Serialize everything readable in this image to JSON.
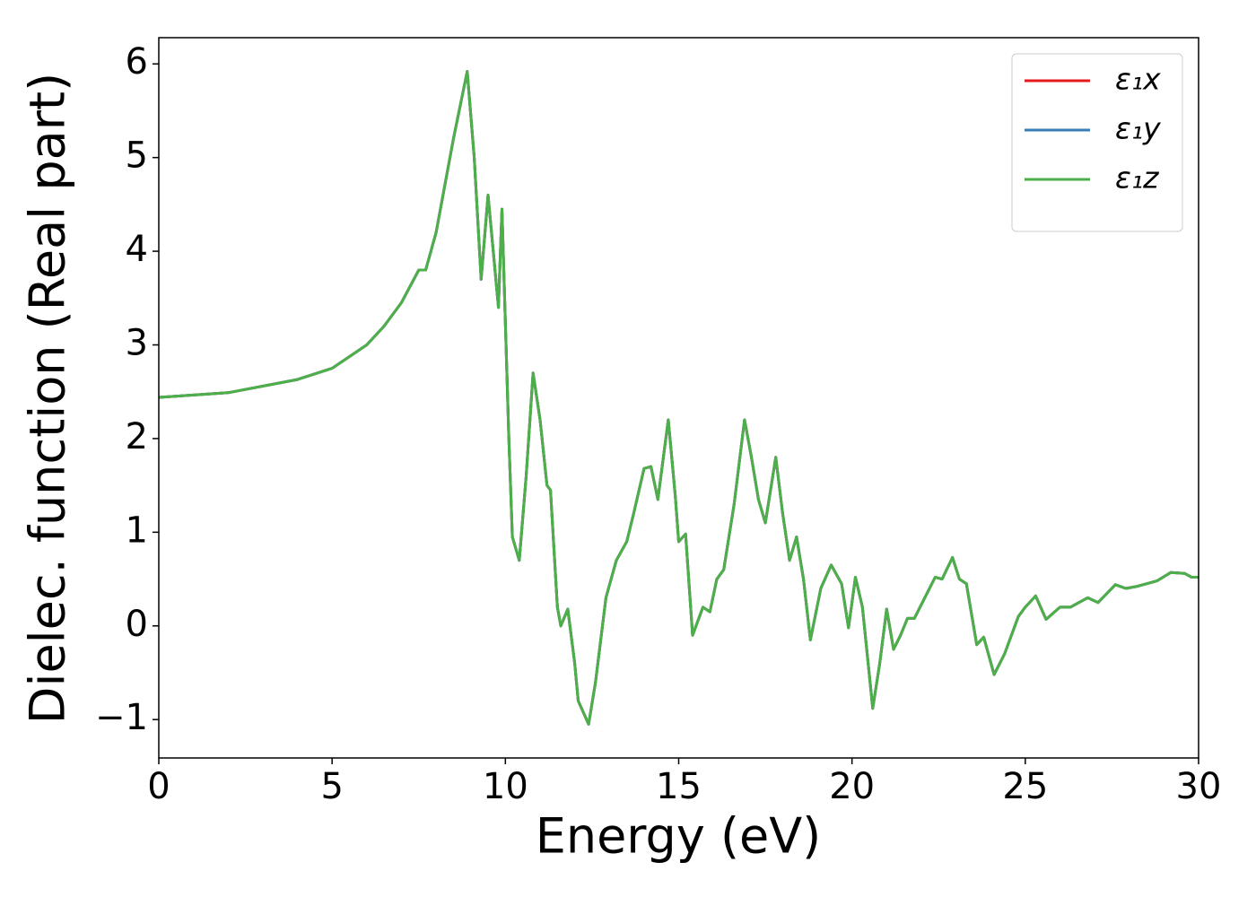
{
  "chart_data": {
    "type": "line",
    "xlabel": "Energy (eV)",
    "ylabel": "Dielec. function (Real part)",
    "x": [
      0,
      2,
      4,
      5,
      6,
      6.5,
      7,
      7.5,
      7.7,
      8,
      8.5,
      8.9,
      9.1,
      9.3,
      9.5,
      9.8,
      9.9,
      10.1,
      10.2,
      10.4,
      10.6,
      10.8,
      11.0,
      11.2,
      11.3,
      11.5,
      11.6,
      11.8,
      12.0,
      12.1,
      12.4,
      12.6,
      12.9,
      13.2,
      13.5,
      13.7,
      14.0,
      14.2,
      14.4,
      14.7,
      14.9,
      15.0,
      15.2,
      15.4,
      15.6,
      15.7,
      15.9,
      16.1,
      16.3,
      16.6,
      16.9,
      17.1,
      17.3,
      17.5,
      17.8,
      18.0,
      18.2,
      18.4,
      18.6,
      18.8,
      19.1,
      19.4,
      19.7,
      19.9,
      20.1,
      20.3,
      20.6,
      20.8,
      21.0,
      21.2,
      21.4,
      21.6,
      21.8,
      22.1,
      22.4,
      22.6,
      22.9,
      23.1,
      23.3,
      23.6,
      23.8,
      24.1,
      24.4,
      24.8,
      25.0,
      25.3,
      25.6,
      26.0,
      26.3,
      26.5,
      26.8,
      27.1,
      27.6,
      27.9,
      28.2,
      28.5,
      28.8,
      29.2,
      29.6,
      29.8,
      30
    ],
    "series": [
      {
        "name": "ε₁x",
        "color": "#e41a1c",
        "values": [
          2.44,
          2.49,
          2.63,
          2.75,
          3.0,
          3.2,
          3.45,
          3.8,
          3.8,
          4.2,
          5.2,
          5.92,
          5.0,
          3.7,
          4.6,
          3.4,
          4.45,
          2.0,
          0.95,
          0.7,
          1.6,
          2.7,
          2.2,
          1.5,
          1.45,
          0.2,
          0.0,
          0.18,
          -0.4,
          -0.8,
          -1.05,
          -0.6,
          0.3,
          0.7,
          0.9,
          1.2,
          1.68,
          1.7,
          1.35,
          2.2,
          1.4,
          0.9,
          0.98,
          -0.1,
          0.1,
          0.2,
          0.15,
          0.5,
          0.6,
          1.3,
          2.2,
          1.8,
          1.35,
          1.1,
          1.8,
          1.2,
          0.7,
          0.95,
          0.5,
          -0.15,
          0.4,
          0.65,
          0.45,
          -0.02,
          0.52,
          0.2,
          -0.88,
          -0.4,
          0.18,
          -0.25,
          -0.1,
          0.08,
          0.08,
          0.3,
          0.52,
          0.5,
          0.73,
          0.5,
          0.45,
          -0.2,
          -0.12,
          -0.52,
          -0.3,
          0.1,
          0.2,
          0.32,
          0.07,
          0.2,
          0.2,
          0.24,
          0.3,
          0.25,
          0.44,
          0.4,
          0.42,
          0.45,
          0.48,
          0.57,
          0.56,
          0.52,
          0.52
        ]
      },
      {
        "name": "ε₁y",
        "color": "#377eb8",
        "values": [
          2.44,
          2.49,
          2.63,
          2.75,
          3.0,
          3.2,
          3.45,
          3.8,
          3.8,
          4.2,
          5.2,
          5.92,
          5.0,
          3.7,
          4.6,
          3.4,
          4.45,
          2.0,
          0.95,
          0.7,
          1.6,
          2.7,
          2.2,
          1.5,
          1.45,
          0.2,
          0.0,
          0.18,
          -0.4,
          -0.8,
          -1.05,
          -0.6,
          0.3,
          0.7,
          0.9,
          1.2,
          1.68,
          1.7,
          1.35,
          2.2,
          1.4,
          0.9,
          0.98,
          -0.1,
          0.1,
          0.2,
          0.15,
          0.5,
          0.6,
          1.3,
          2.2,
          1.8,
          1.35,
          1.1,
          1.8,
          1.2,
          0.7,
          0.95,
          0.5,
          -0.15,
          0.4,
          0.65,
          0.45,
          -0.02,
          0.52,
          0.2,
          -0.88,
          -0.4,
          0.18,
          -0.25,
          -0.1,
          0.08,
          0.08,
          0.3,
          0.52,
          0.5,
          0.73,
          0.5,
          0.45,
          -0.2,
          -0.12,
          -0.52,
          -0.3,
          0.1,
          0.2,
          0.32,
          0.07,
          0.2,
          0.2,
          0.24,
          0.3,
          0.25,
          0.44,
          0.4,
          0.42,
          0.45,
          0.48,
          0.57,
          0.56,
          0.52,
          0.52
        ]
      },
      {
        "name": "ε₁z",
        "color": "#4daf4a",
        "values": [
          2.44,
          2.49,
          2.63,
          2.75,
          3.0,
          3.2,
          3.45,
          3.8,
          3.8,
          4.2,
          5.2,
          5.92,
          5.0,
          3.7,
          4.6,
          3.4,
          4.45,
          2.0,
          0.95,
          0.7,
          1.6,
          2.7,
          2.2,
          1.5,
          1.45,
          0.2,
          0.0,
          0.18,
          -0.4,
          -0.8,
          -1.05,
          -0.6,
          0.3,
          0.7,
          0.9,
          1.2,
          1.68,
          1.7,
          1.35,
          2.2,
          1.4,
          0.9,
          0.98,
          -0.1,
          0.1,
          0.2,
          0.15,
          0.5,
          0.6,
          1.3,
          2.2,
          1.8,
          1.35,
          1.1,
          1.8,
          1.2,
          0.7,
          0.95,
          0.5,
          -0.15,
          0.4,
          0.65,
          0.45,
          -0.02,
          0.52,
          0.2,
          -0.88,
          -0.4,
          0.18,
          -0.25,
          -0.1,
          0.08,
          0.08,
          0.3,
          0.52,
          0.5,
          0.73,
          0.5,
          0.45,
          -0.2,
          -0.12,
          -0.52,
          -0.3,
          0.1,
          0.2,
          0.32,
          0.07,
          0.2,
          0.2,
          0.24,
          0.3,
          0.25,
          0.44,
          0.4,
          0.42,
          0.45,
          0.48,
          0.57,
          0.56,
          0.52,
          0.52
        ]
      }
    ],
    "xlim": [
      0,
      30
    ],
    "xticks": [
      0,
      5,
      10,
      15,
      20,
      25,
      30
    ],
    "ylim": [
      -1.41,
      6.28
    ],
    "yticks": [
      -1,
      0,
      1,
      2,
      3,
      4,
      5,
      6
    ],
    "legend": "upper right",
    "grid": false
  }
}
